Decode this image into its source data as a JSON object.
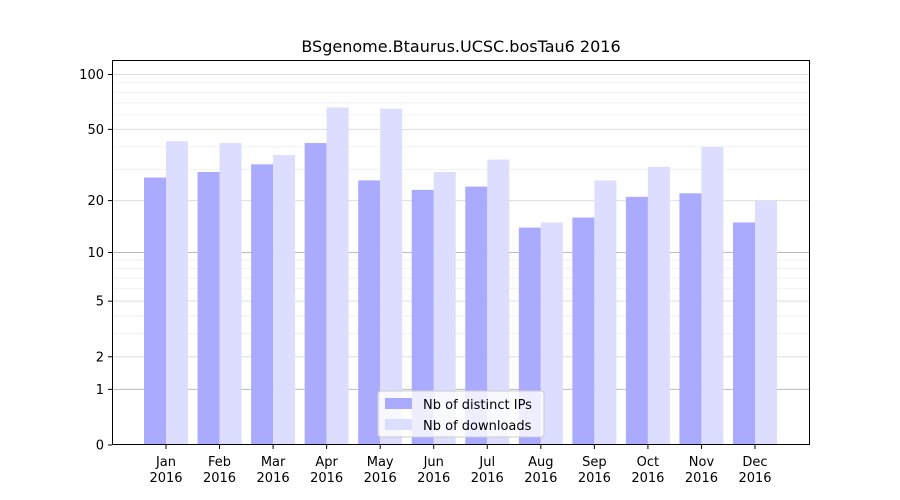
{
  "chart_data": {
    "type": "bar",
    "title": "BSgenome.Btaurus.UCSC.bosTau6 2016",
    "xlabel": "",
    "ylabel": "",
    "yscale": "log(1+y)",
    "ylim": [
      0,
      120
    ],
    "yticks": [
      0,
      1,
      2,
      5,
      10,
      20,
      50,
      100
    ],
    "ytick_labels": [
      "0",
      "1",
      "2",
      "5",
      "10",
      "20",
      "50",
      "100"
    ],
    "grid": "horizontal",
    "legend_position": "bottom-center",
    "categories": [
      "Jan\n2016",
      "Feb\n2016",
      "Mar\n2016",
      "Apr\n2016",
      "May\n2016",
      "Jun\n2016",
      "Jul\n2016",
      "Aug\n2016",
      "Sep\n2016",
      "Oct\n2016",
      "Nov\n2016",
      "Dec\n2016"
    ],
    "series": [
      {
        "name": "Nb of distinct IPs",
        "color": "#aaaaff",
        "values": [
          27,
          29,
          32,
          42,
          26,
          23,
          24,
          14,
          16,
          21,
          22,
          15
        ]
      },
      {
        "name": "Nb of downloads",
        "color": "#ddddff",
        "values": [
          43,
          42,
          36,
          66,
          65,
          29,
          34,
          15,
          26,
          31,
          40,
          20
        ]
      }
    ]
  }
}
